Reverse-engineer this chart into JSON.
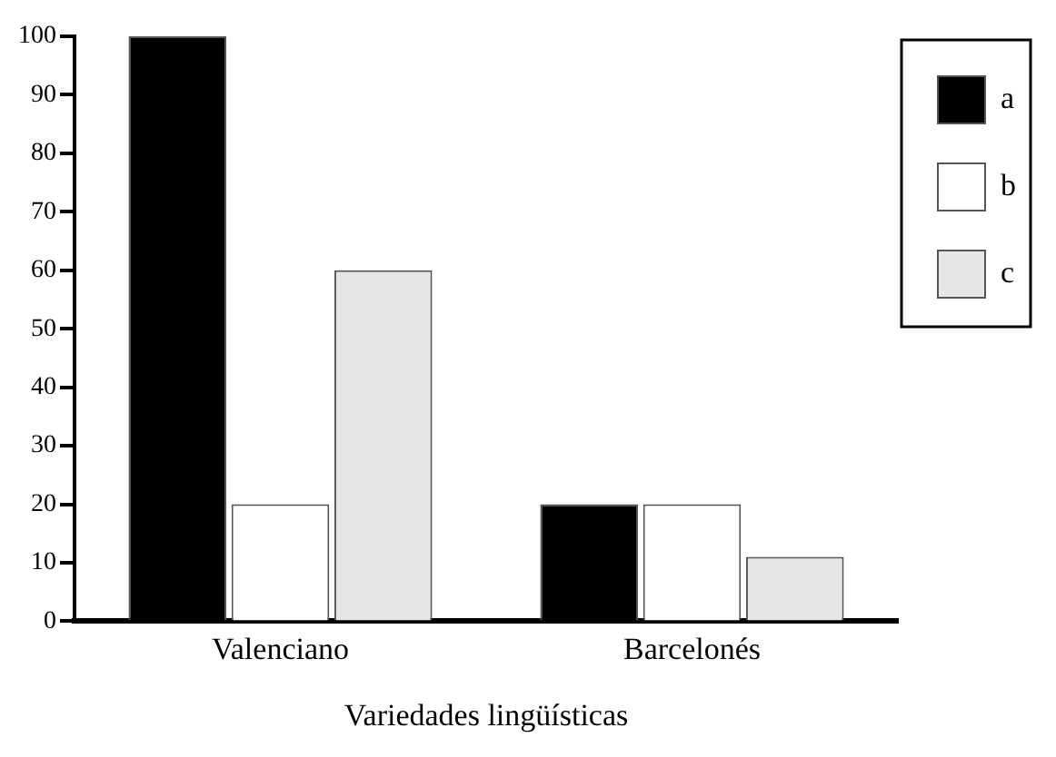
{
  "chart_data": {
    "type": "bar",
    "xlabel": "Variedades lingüísticas",
    "categories": [
      "Valenciano",
      "Barcelonés"
    ],
    "series": [
      {
        "name": "a",
        "color": "#000000",
        "values": [
          100,
          20
        ]
      },
      {
        "name": "b",
        "color": "#ffffff",
        "values": [
          20,
          20
        ]
      },
      {
        "name": "c",
        "color": "#e6e6e6",
        "values": [
          60,
          11
        ]
      }
    ],
    "ylim": [
      0,
      100
    ],
    "yticks": [
      0,
      10,
      20,
      30,
      40,
      50,
      60,
      70,
      80,
      90,
      100
    ],
    "grid": false,
    "legend": "top right"
  }
}
